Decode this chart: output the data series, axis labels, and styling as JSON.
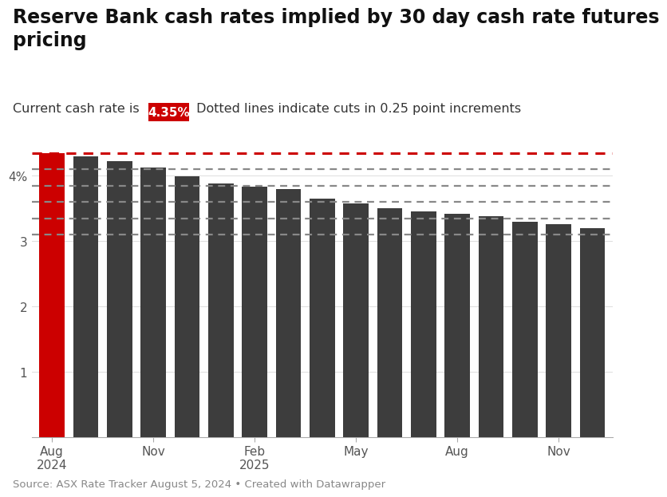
{
  "title": "Reserve Bank cash rates implied by 30 day cash rate futures\npricing",
  "subtitle_plain": "Current cash rate is ",
  "subtitle_rate": "4.35%",
  "subtitle_suffix": " Dotted lines indicate cuts in 0.25 point increments",
  "source": "Source: ASX Rate Tracker August 5, 2024 • Created with Datawrapper",
  "bar_values": [
    4.35,
    4.29,
    4.22,
    4.12,
    3.99,
    3.88,
    3.83,
    3.79,
    3.65,
    3.58,
    3.5,
    3.45,
    3.42,
    3.38,
    3.3,
    3.26,
    3.2
  ],
  "bar_colors": [
    "#cc0000",
    "#3d3d3d",
    "#3d3d3d",
    "#3d3d3d",
    "#3d3d3d",
    "#3d3d3d",
    "#3d3d3d",
    "#3d3d3d",
    "#3d3d3d",
    "#3d3d3d",
    "#3d3d3d",
    "#3d3d3d",
    "#3d3d3d",
    "#3d3d3d",
    "#3d3d3d",
    "#3d3d3d",
    "#3d3d3d"
  ],
  "current_rate": 4.35,
  "dotted_lines": [
    4.35,
    4.1,
    3.85,
    3.6,
    3.35,
    3.1
  ],
  "dotted_line_color_current": "#cc0000",
  "dotted_line_color_other": "#888888",
  "ylim": [
    0,
    4.7
  ],
  "yticks": [
    1,
    2,
    3,
    4
  ],
  "ytick_labels": [
    "1",
    "2",
    "3",
    "4%"
  ],
  "x_tick_positions": [
    0,
    3,
    6,
    9,
    12,
    15
  ],
  "x_tick_labels": [
    "Aug\n2024",
    "Nov",
    "Feb\n2025",
    "May",
    "Aug",
    "Nov"
  ],
  "background_color": "#ffffff",
  "title_fontsize": 17,
  "subtitle_fontsize": 11.5,
  "axis_fontsize": 11,
  "source_fontsize": 9.5,
  "rate_badge_color": "#cc0000",
  "rate_badge_text_color": "#ffffff"
}
